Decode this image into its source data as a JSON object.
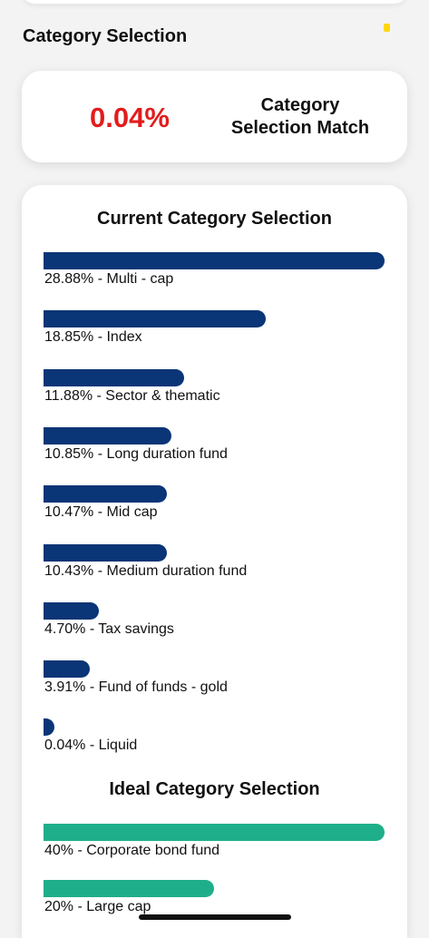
{
  "header": {
    "title": "Category Selection"
  },
  "match": {
    "value": "0.04%",
    "label_line1": "Category",
    "label_line2": "Selection Match",
    "value_color": "#e21c1c"
  },
  "current": {
    "heading": "Current Category Selection",
    "bar_color": "#0a3576",
    "items": [
      {
        "label": "28.88% - Multi - cap",
        "percent": 28.88
      },
      {
        "label": "18.85% - Index",
        "percent": 18.85
      },
      {
        "label": "11.88% - Sector & thematic",
        "percent": 11.88
      },
      {
        "label": "10.85% - Long duration fund",
        "percent": 10.85
      },
      {
        "label": "10.47% - Mid cap",
        "percent": 10.47
      },
      {
        "label": "10.43% - Medium duration fund",
        "percent": 10.43
      },
      {
        "label": "4.70% - Tax savings",
        "percent": 4.7
      },
      {
        "label": "3.91% - Fund of funds - gold",
        "percent": 3.91
      },
      {
        "label": "0.04% - Liquid",
        "percent": 0.04
      }
    ]
  },
  "ideal": {
    "heading": "Ideal Category Selection",
    "bar_color": "#1eaf8a",
    "items": [
      {
        "label": "40% - Corporate bond fund",
        "percent": 40
      },
      {
        "label": "20% - Large cap",
        "percent": 20
      }
    ]
  },
  "icons": {
    "status_indicator": "yellow-indicator-icon"
  }
}
